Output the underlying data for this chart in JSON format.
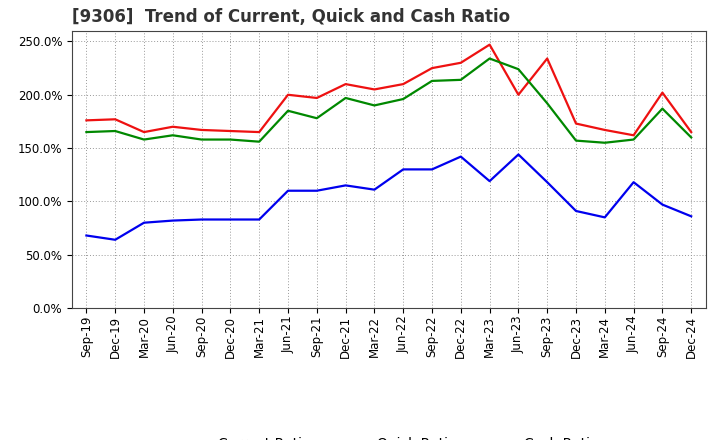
{
  "title": "[9306]  Trend of Current, Quick and Cash Ratio",
  "x_labels": [
    "Sep-19",
    "Dec-19",
    "Mar-20",
    "Jun-20",
    "Sep-20",
    "Dec-20",
    "Mar-21",
    "Jun-21",
    "Sep-21",
    "Dec-21",
    "Mar-22",
    "Jun-22",
    "Sep-22",
    "Dec-22",
    "Mar-23",
    "Jun-23",
    "Sep-23",
    "Dec-23",
    "Mar-24",
    "Jun-24",
    "Sep-24",
    "Dec-24"
  ],
  "current_ratio": [
    1.76,
    1.77,
    1.65,
    1.7,
    1.67,
    1.66,
    1.65,
    2.0,
    1.97,
    2.1,
    2.05,
    2.1,
    2.25,
    2.3,
    2.47,
    2.0,
    2.34,
    1.73,
    1.67,
    1.62,
    2.02,
    1.65
  ],
  "quick_ratio": [
    1.65,
    1.66,
    1.58,
    1.62,
    1.58,
    1.58,
    1.56,
    1.85,
    1.78,
    1.97,
    1.9,
    1.96,
    2.13,
    2.14,
    2.34,
    2.24,
    1.92,
    1.57,
    1.55,
    1.58,
    1.87,
    1.6
  ],
  "cash_ratio": [
    0.68,
    0.64,
    0.8,
    0.82,
    0.83,
    0.83,
    0.83,
    1.1,
    1.1,
    1.15,
    1.11,
    1.3,
    1.3,
    1.42,
    1.19,
    1.44,
    1.18,
    0.91,
    0.85,
    1.18,
    0.97,
    0.86
  ],
  "current_color": "#EE1111",
  "quick_color": "#008800",
  "cash_color": "#0000EE",
  "line_width": 1.6,
  "bg_color": "#FFFFFF",
  "plot_bg_color": "#FFFFFF",
  "grid_color": "#999999",
  "title_fontsize": 12,
  "legend_fontsize": 10,
  "tick_fontsize": 8.5,
  "title_color": "#333333"
}
